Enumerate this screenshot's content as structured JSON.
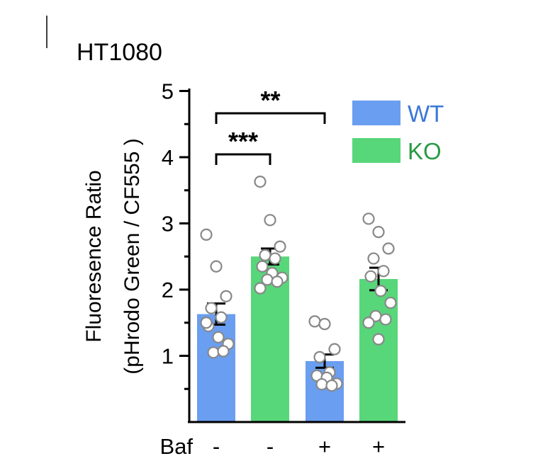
{
  "chart_data": {
    "type": "bar",
    "title": "HT1080",
    "ylabel_line1": "Fluoresence Ratio",
    "ylabel_line2": "(pHrodo Green / CF555 )",
    "ylim": [
      0,
      5
    ],
    "yticks": [
      1,
      2,
      3,
      4,
      5
    ],
    "condition_label": "Baf",
    "categories": [
      "-",
      "-",
      "+",
      "+"
    ],
    "bars": [
      {
        "group": "WT",
        "baf": "-",
        "mean": 1.63,
        "sem": 0.16,
        "points": [
          2.83,
          2.35,
          1.9,
          1.72,
          1.58,
          1.45,
          1.28,
          1.18,
          1.05,
          1.07,
          1.5
        ]
      },
      {
        "group": "KO",
        "baf": "-",
        "mean": 2.5,
        "sem": 0.12,
        "points": [
          3.63,
          3.05,
          2.65,
          2.52,
          2.47,
          2.35,
          2.25,
          2.18,
          2.15,
          2.12,
          2.02
        ]
      },
      {
        "group": "WT",
        "baf": "+",
        "mean": 0.92,
        "sem": 0.1,
        "points": [
          1.52,
          1.48,
          1.1,
          0.98,
          0.75,
          0.7,
          0.67,
          0.58,
          0.57,
          0.55
        ]
      },
      {
        "group": "KO",
        "baf": "+",
        "mean": 2.16,
        "sem": 0.17,
        "points": [
          3.07,
          2.87,
          2.62,
          2.47,
          2.28,
          2.2,
          1.98,
          1.8,
          1.6,
          1.55,
          1.5,
          1.25
        ]
      }
    ],
    "legend": [
      {
        "name": "WT",
        "color": "#6a9ef0"
      },
      {
        "name": "KO",
        "color": "#58d67a"
      }
    ],
    "legend_text_colors": {
      "WT": "#3a78d8",
      "KO": "#2a9a44"
    },
    "legend_position": "top-right",
    "significance": [
      {
        "label": "***",
        "from": 0,
        "to": 1
      },
      {
        "label": "**",
        "from": 0,
        "to": 2
      }
    ],
    "grid": false
  }
}
